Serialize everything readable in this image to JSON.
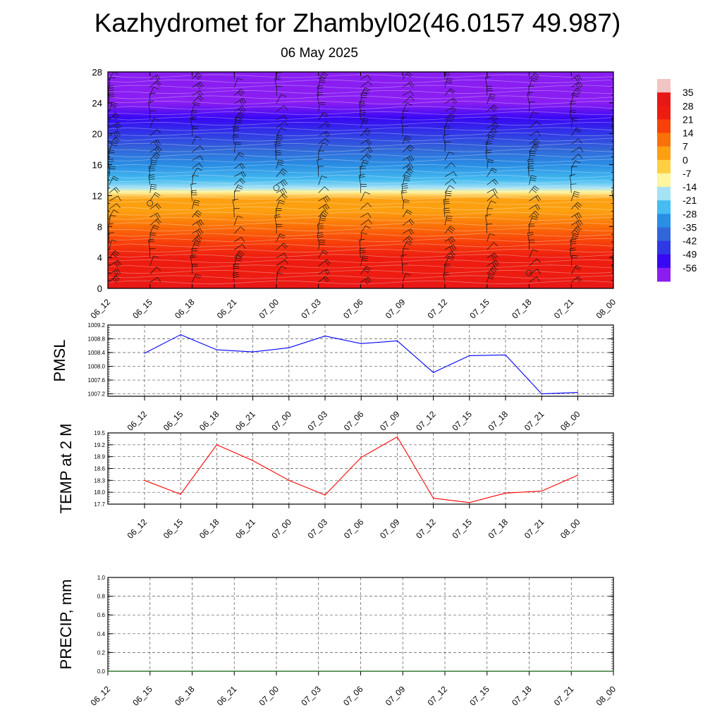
{
  "header": {
    "title": "Kazhydromet for Zhambyl02(46.0157 49.987)",
    "date": "06 May 2025"
  },
  "colors": {
    "pmsl_line": "#0000ff",
    "temp_line": "#ff0000",
    "precip_line": "#006400",
    "grid": "#555555",
    "axis": "#000000"
  },
  "chart_data": [
    {
      "type": "heatmap",
      "name": "height-time-section",
      "title": "",
      "x": [
        "06_12",
        "06_15",
        "06_18",
        "06_21",
        "07_00",
        "07_03",
        "07_06",
        "07_09",
        "07_12",
        "07_15",
        "07_18",
        "07_21",
        "08_00"
      ],
      "y_ticks": [
        0,
        4,
        8,
        12,
        16,
        20,
        24,
        28
      ],
      "ylim": [
        0,
        28
      ],
      "colorbar_ticks": [
        35,
        28,
        21,
        14,
        7,
        0,
        -7,
        -14,
        -21,
        -28,
        -35,
        -42,
        -49,
        -56
      ],
      "colorbar_colors": [
        "#f2c4c4",
        "#e81717",
        "#ee1c10",
        "#f8400a",
        "#fb7008",
        "#fca010",
        "#fdd040",
        "#fef6a0",
        "#a6e2f6",
        "#46bcf0",
        "#2a8ee4",
        "#3266d8",
        "#3038e6",
        "#3808f4",
        "#8a1ef2"
      ],
      "levels_profile": [
        {
          "h": 0,
          "t": 31
        },
        {
          "h": 2,
          "t": 27
        },
        {
          "h": 4,
          "t": 22
        },
        {
          "h": 6,
          "t": 16
        },
        {
          "h": 8,
          "t": 11
        },
        {
          "h": 10,
          "t": 5
        },
        {
          "h": 11.5,
          "t": 0
        },
        {
          "h": 12.5,
          "t": -10
        },
        {
          "h": 13,
          "t": -15
        },
        {
          "h": 14,
          "t": -22
        },
        {
          "h": 16,
          "t": -30
        },
        {
          "h": 18,
          "t": -40
        },
        {
          "h": 20,
          "t": -49
        },
        {
          "h": 22,
          "t": -55
        },
        {
          "h": 24,
          "t": -58
        },
        {
          "h": 26,
          "t": -62
        },
        {
          "h": 28,
          "t": -66
        }
      ]
    },
    {
      "type": "line",
      "ylabel": "PMSL",
      "categories": [
        "06_12",
        "06_15",
        "06_18",
        "06_21",
        "07_00",
        "07_03",
        "07_06",
        "07_09",
        "07_12",
        "07_15",
        "07_18",
        "07_21",
        "08_00"
      ],
      "series": [
        {
          "values": [
            1008.38,
            1008.92,
            1008.48,
            1008.42,
            1008.54,
            1008.88,
            1008.66,
            1008.74,
            1007.82,
            1008.31,
            1008.33,
            1007.2,
            1007.24
          ]
        }
      ],
      "ylim": [
        1007.13,
        1009.2
      ],
      "y_ticks": [
        1007.2,
        1007.6,
        1008.0,
        1008.4,
        1008.8,
        1009.2
      ],
      "y_tick_labels": [
        "1007.2",
        "1007.6",
        "1008.0",
        "1008.4",
        "1008.8",
        "1009.2"
      ],
      "grid": true
    },
    {
      "type": "line",
      "ylabel": "TEMP at 2 M",
      "categories": [
        "06_12",
        "06_15",
        "06_18",
        "06_21",
        "07_00",
        "07_03",
        "07_06",
        "07_09",
        "07_12",
        "07_15",
        "07_18",
        "07_21",
        "08_00"
      ],
      "series": [
        {
          "values": [
            18.3,
            17.95,
            19.2,
            18.8,
            18.3,
            17.93,
            18.88,
            19.4,
            17.85,
            17.74,
            17.98,
            18.03,
            18.43
          ]
        }
      ],
      "ylim": [
        17.7,
        19.5
      ],
      "y_ticks": [
        17.7,
        18.0,
        18.3,
        18.6,
        18.9,
        19.2,
        19.5
      ],
      "y_tick_labels": [
        "17.7",
        "18.0",
        "18.3",
        "18.6",
        "18.9",
        "19.2",
        "19.5"
      ],
      "grid": true
    },
    {
      "type": "line",
      "ylabel": "PRECIP, mm",
      "categories": [
        "06_12",
        "06_15",
        "06_18",
        "06_21",
        "07_00",
        "07_03",
        "07_06",
        "07_09",
        "07_12",
        "07_15",
        "07_18",
        "07_21",
        "08_00"
      ],
      "series": [
        {
          "values": [
            0,
            0,
            0,
            0,
            0,
            0,
            0,
            0,
            0,
            0,
            0,
            0,
            0
          ]
        }
      ],
      "ylim": [
        0,
        1.0
      ],
      "y_ticks": [
        0.0,
        0.2,
        0.4,
        0.6,
        0.8,
        1.0
      ],
      "y_tick_labels": [
        "0.0",
        "0.2",
        "0.4",
        "0.6",
        "0.8",
        "1.0"
      ],
      "grid": true
    }
  ]
}
